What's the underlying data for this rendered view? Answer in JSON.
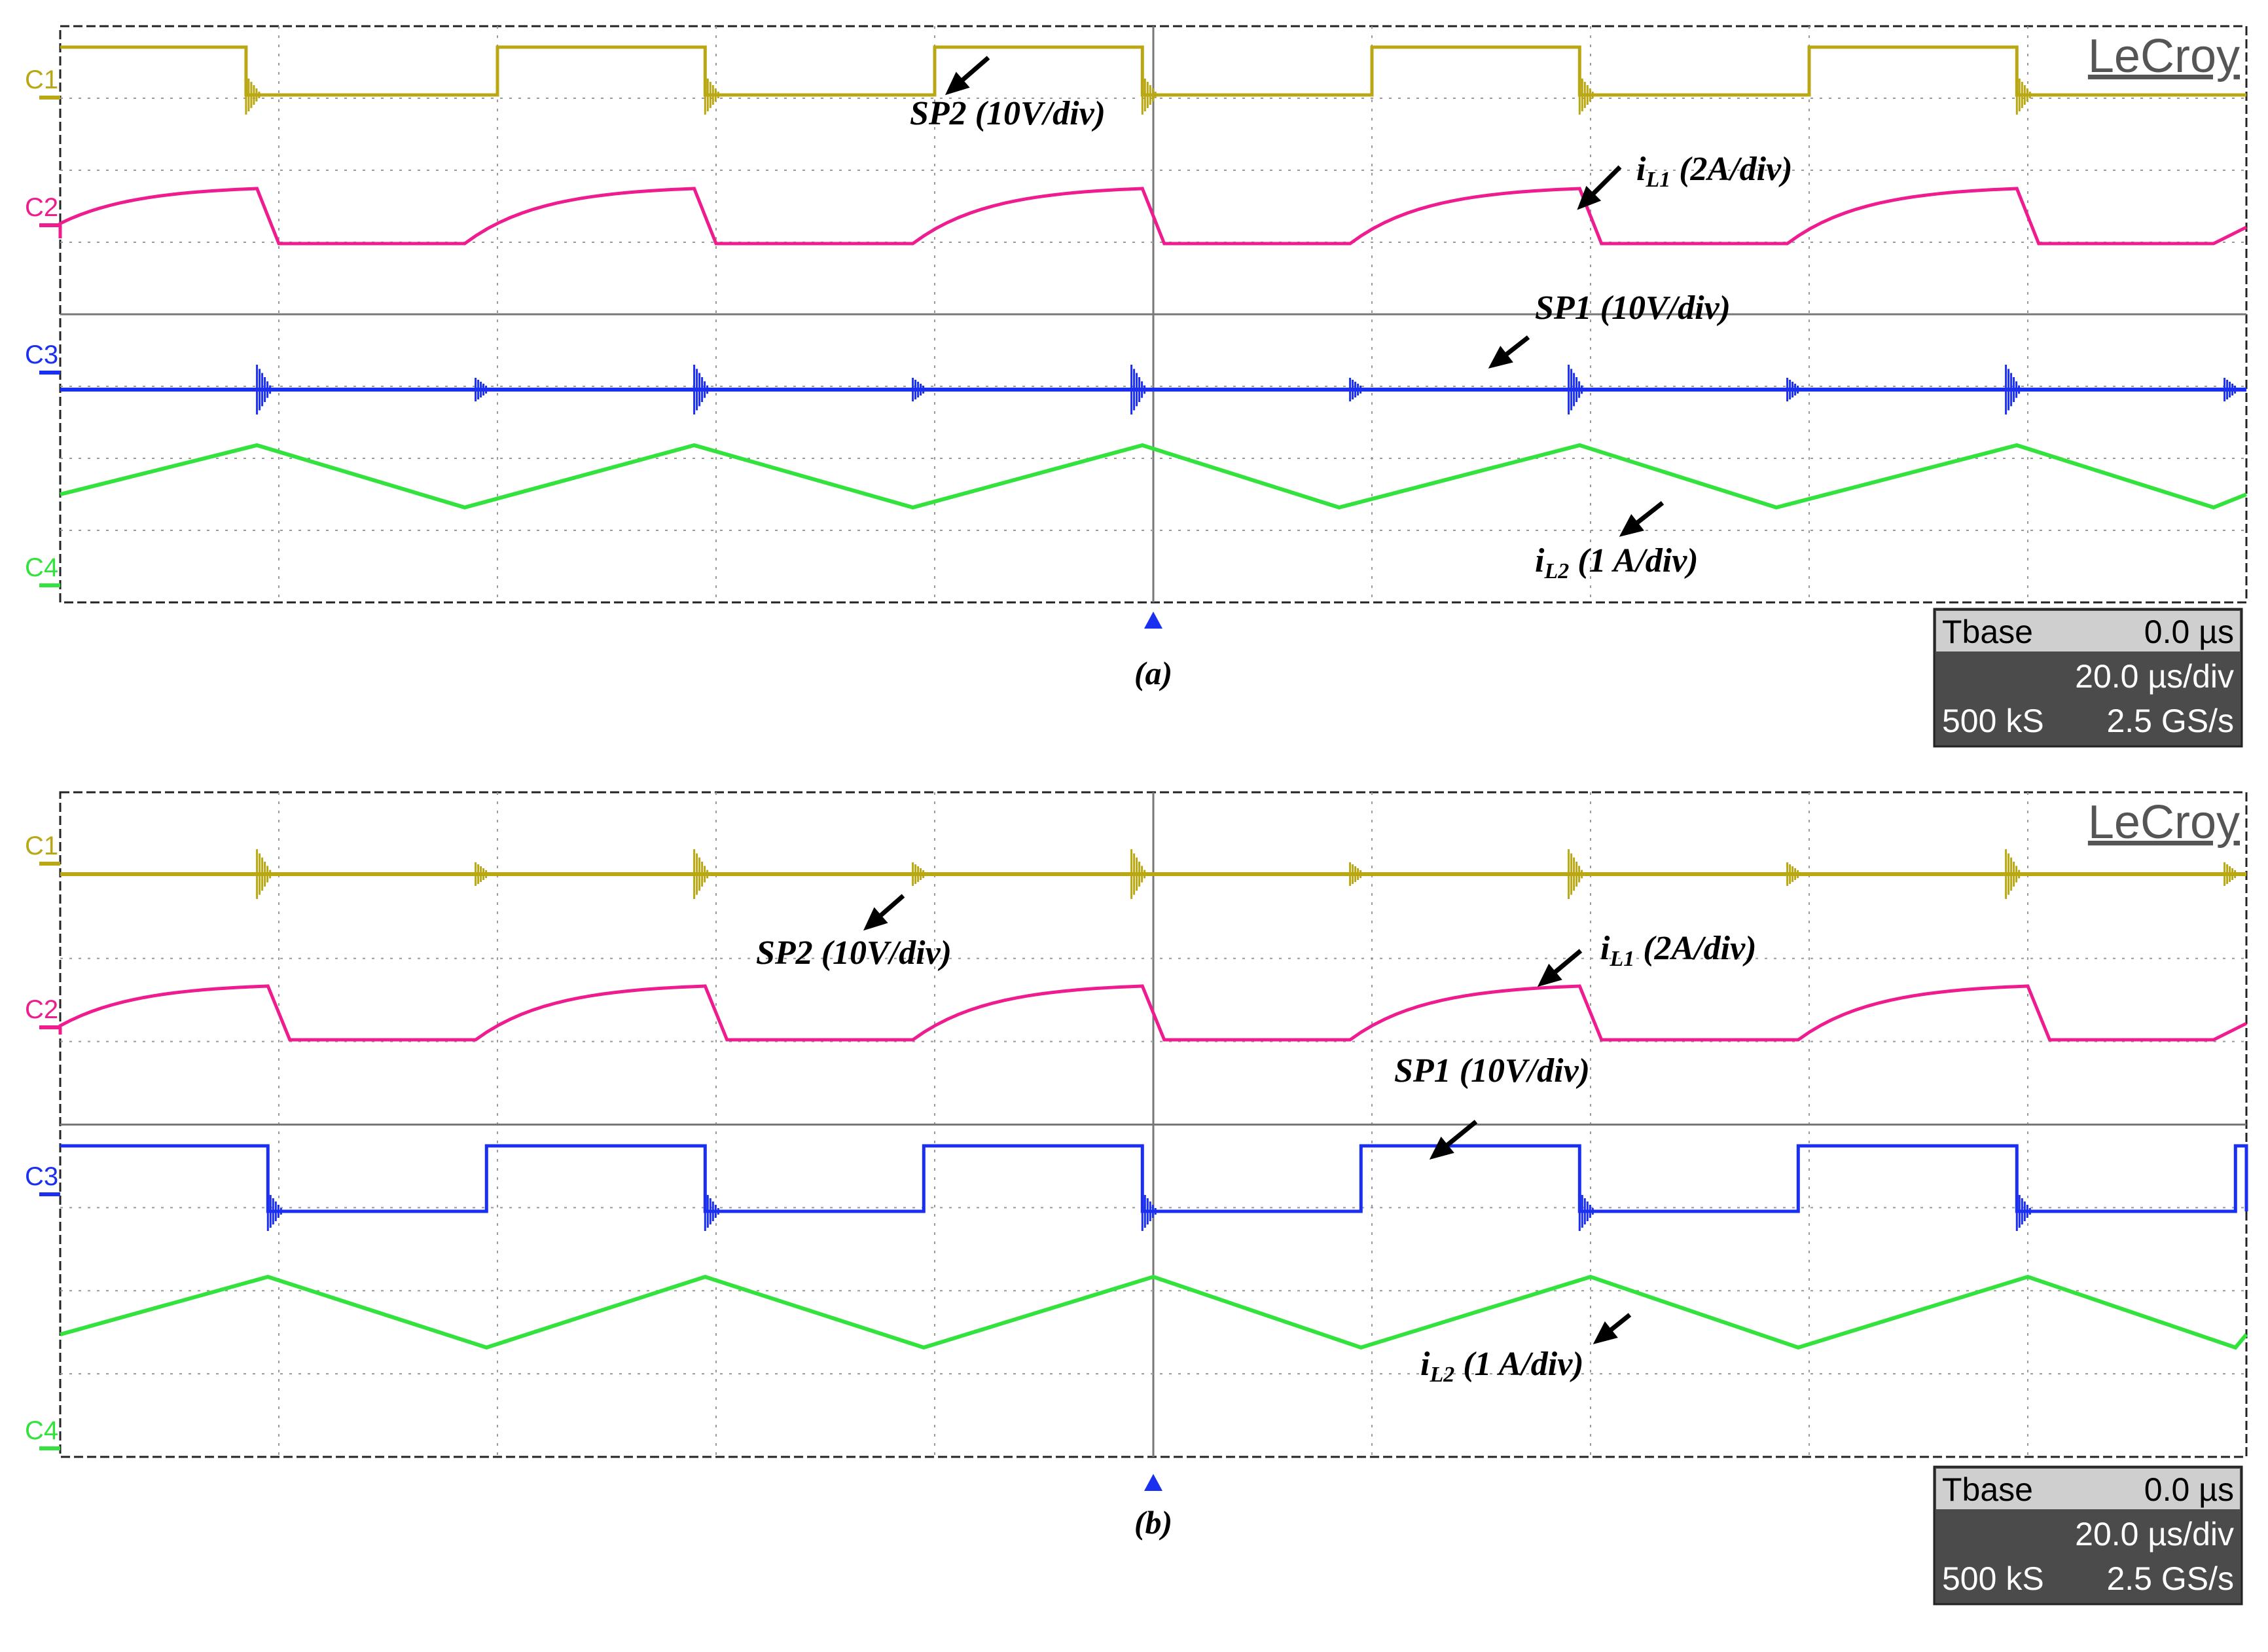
{
  "colors": {
    "c1": "#b9a813",
    "c2": "#ee1c8f",
    "c3": "#1a2ff0",
    "c4": "#33e23d",
    "grid": "#9a9a9a",
    "tbase_panel": "#4b4b4b",
    "tbase_header": "#cfcfcf"
  },
  "brand": "LeCroy",
  "channels": [
    "C1",
    "C2",
    "C3",
    "C4"
  ],
  "timebase": {
    "label": "Tbase",
    "delay": "0.0 µs",
    "scale": "20.0 µs/div",
    "points": "500 kS",
    "sample_rate": "2.5 GS/s"
  },
  "chart_data": [
    {
      "type": "line",
      "caption": "(a)",
      "x_unit": "µs",
      "xlim": [
        -100,
        100
      ],
      "switching_period_us": 40,
      "series": [
        {
          "name": "SP2 (10V/div)",
          "channel": "C1",
          "waveform": "square",
          "high_during_us": [
            [
              -100,
              -83
            ],
            [
              -60,
              -41
            ],
            [
              -20,
              -1
            ],
            [
              20,
              39
            ],
            [
              60,
              79
            ]
          ],
          "annotation": {
            "base": "SP2  (10V/div)"
          }
        },
        {
          "name": "iL1 (2A/div)",
          "channel": "C2",
          "waveform": "exponential-rise then drop",
          "peaks_at_us": [
            -82,
            -42,
            -1,
            39,
            79
          ],
          "annotation": {
            "base": "i",
            "sub": "L1",
            "rest": " (2A/div)"
          }
        },
        {
          "name": "SP1 (10V/div)",
          "channel": "C3",
          "waveform": "low with switching spikes",
          "annotation": {
            "base": "SP1 (10V/div)"
          }
        },
        {
          "name": "iL2 (1 A/div)",
          "channel": "C4",
          "waveform": "triangle",
          "peaks_at_us": [
            -82,
            -42,
            -1,
            39,
            79
          ],
          "valleys_at_us": [
            -63,
            -22,
            17,
            57,
            97
          ],
          "annotation": {
            "base": "i",
            "sub": "L2",
            "rest": " (1 A/div)"
          }
        }
      ]
    },
    {
      "type": "line",
      "caption": "(b)",
      "x_unit": "µs",
      "xlim": [
        -100,
        100
      ],
      "switching_period_us": 40,
      "series": [
        {
          "name": "SP2 (10V/div)",
          "channel": "C1",
          "waveform": "low with switching spikes",
          "annotation": {
            "base": "SP2  (10V/div)"
          }
        },
        {
          "name": "iL1 (2A/div)",
          "channel": "C2",
          "waveform": "exponential-rise then drop",
          "peaks_at_us": [
            -81,
            -41,
            -1,
            39,
            80
          ],
          "annotation": {
            "base": "i",
            "sub": "L1",
            "rest": " (2A/div)"
          }
        },
        {
          "name": "SP1 (10V/div)",
          "channel": "C3",
          "waveform": "square",
          "high_during_us": [
            [
              -100,
              -81
            ],
            [
              -61,
              -41
            ],
            [
              -21,
              -1
            ],
            [
              19,
              39
            ],
            [
              59,
              79
            ],
            [
              99,
              100
            ]
          ],
          "annotation": {
            "base": "SP1 (10V/div)"
          }
        },
        {
          "name": "iL2 (1 A/div)",
          "channel": "C4",
          "waveform": "triangle",
          "peaks_at_us": [
            -81,
            -41,
            0,
            40,
            80
          ],
          "valleys_at_us": [
            -61,
            -21,
            19,
            59,
            99
          ],
          "annotation": {
            "base": "i",
            "sub": "L2",
            "rest": " (1 A/div)"
          }
        }
      ]
    }
  ]
}
